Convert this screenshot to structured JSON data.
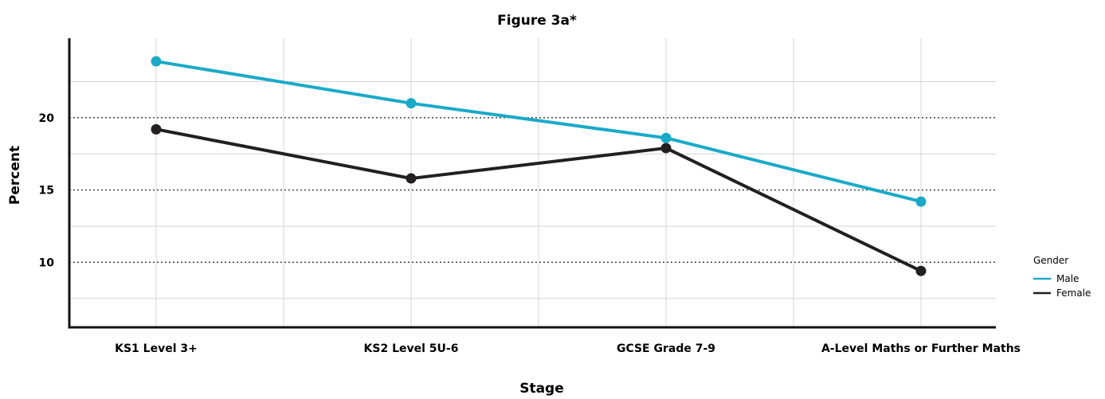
{
  "chart_data": {
    "type": "line",
    "title": "Figure 3a*",
    "xlabel": "Stage",
    "ylabel": "Percent",
    "categories": [
      "KS1 Level 3+",
      "KS2 Level 5U-6",
      "GCSE Grade 7-9",
      "A-Level Maths or Further Maths"
    ],
    "ylim": [
      5.5,
      25.5
    ],
    "yticks": [
      10,
      15,
      20
    ],
    "series": [
      {
        "name": "Male",
        "color": "#1aaac8",
        "values": [
          23.9,
          21.0,
          18.6,
          14.2
        ]
      },
      {
        "name": "Female",
        "color": "#231f20",
        "values": [
          19.2,
          15.8,
          17.9,
          9.4
        ]
      }
    ],
    "legend": {
      "title": "Gender",
      "position": "right"
    },
    "grid": true
  }
}
